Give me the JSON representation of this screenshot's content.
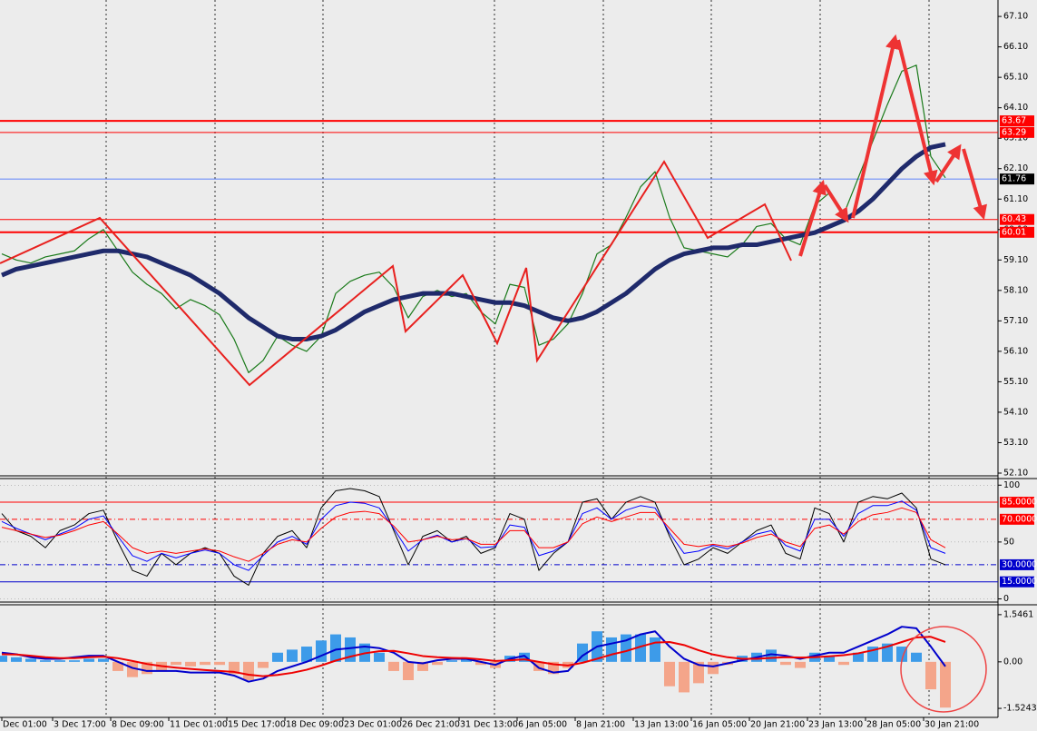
{
  "chart_data": [
    {
      "type": "line",
      "ylim": [
        52.04,
        67.64
      ],
      "yticks": [
        {
          "value": 52.1,
          "label": "52.10"
        },
        {
          "value": 53.1,
          "label": "53.10"
        },
        {
          "value": 54.1,
          "label": "54.10"
        },
        {
          "value": 55.1,
          "label": "55.10"
        },
        {
          "value": 56.1,
          "label": "56.10"
        },
        {
          "value": 57.1,
          "label": "57.10"
        },
        {
          "value": 58.1,
          "label": "58.10"
        },
        {
          "value": 59.1,
          "label": "59.10"
        },
        {
          "value": 60.1,
          "label": "60.10"
        },
        {
          "value": 61.1,
          "label": "61.10"
        },
        {
          "value": 62.1,
          "label": "62.10"
        },
        {
          "value": 63.1,
          "label": "63.10"
        },
        {
          "value": 64.1,
          "label": "64.10"
        },
        {
          "value": 65.1,
          "label": "65.10"
        },
        {
          "value": 66.1,
          "label": "66.10"
        },
        {
          "value": 67.1,
          "label": "67.10"
        }
      ],
      "levels": [
        {
          "value": 63.67,
          "color": "#ff0000",
          "width": 2
        },
        {
          "value": 63.29,
          "color": "#ff0000",
          "width": 1
        },
        {
          "value": 61.76,
          "color": "#3060ff",
          "width": 0.7,
          "box": "#000000"
        },
        {
          "value": 60.43,
          "color": "#ff0000",
          "width": 1
        },
        {
          "value": 60.01,
          "color": "#ff0000",
          "width": 2
        }
      ],
      "series": [
        {
          "color": "#1a7a1a",
          "width": 1.2,
          "values": [
            59.3,
            59.1,
            59.0,
            59.2,
            59.3,
            59.4,
            59.8,
            60.1,
            59.4,
            58.7,
            58.3,
            58.0,
            57.5,
            57.8,
            57.6,
            57.3,
            56.5,
            55.4,
            55.8,
            56.6,
            56.3,
            56.1,
            56.6,
            58.0,
            58.4,
            58.6,
            58.7,
            58.2,
            57.2,
            57.9,
            58.1,
            57.9,
            58.0,
            57.4,
            57.0,
            58.3,
            58.2,
            56.3,
            56.5,
            57.0,
            58.0,
            59.3,
            59.6,
            60.5,
            61.5,
            62.0,
            60.5,
            59.5,
            59.4,
            59.3,
            59.2,
            59.6,
            60.2,
            60.3,
            59.8,
            59.6,
            60.9,
            61.3,
            60.6,
            61.8,
            63.0,
            64.2,
            65.3,
            65.5,
            62.5,
            61.8
          ]
        },
        {
          "color": "#1f2a6b",
          "width": 5,
          "values": [
            58.6,
            58.8,
            58.9,
            59.0,
            59.1,
            59.2,
            59.3,
            59.4,
            59.4,
            59.3,
            59.2,
            59.0,
            58.8,
            58.6,
            58.3,
            58.0,
            57.6,
            57.2,
            56.9,
            56.6,
            56.5,
            56.5,
            56.6,
            56.8,
            57.1,
            57.4,
            57.6,
            57.8,
            57.9,
            58.0,
            58.0,
            58.0,
            57.9,
            57.8,
            57.7,
            57.7,
            57.6,
            57.4,
            57.2,
            57.1,
            57.2,
            57.4,
            57.7,
            58.0,
            58.4,
            58.8,
            59.1,
            59.3,
            59.4,
            59.5,
            59.5,
            59.6,
            59.6,
            59.7,
            59.8,
            59.9,
            60.0,
            60.2,
            60.4,
            60.7,
            61.1,
            61.6,
            62.1,
            62.5,
            62.8,
            62.9
          ]
        }
      ]
    },
    {
      "type": "line",
      "ylim": [
        -2,
        105
      ],
      "yticks": [
        0,
        50,
        100
      ],
      "levels": [
        {
          "value": 85,
          "label": "85.0000",
          "color": "#ff0000",
          "width": 1
        },
        {
          "value": 70,
          "label": "70.0000",
          "color": "#ff0000",
          "width": 1,
          "dash": "6 3 1 3"
        },
        {
          "value": 30,
          "label": "30.0000",
          "color": "#0000cc",
          "width": 1,
          "dash": "6 3 1 3"
        },
        {
          "value": 15,
          "label": "15.0000",
          "color": "#0000cc",
          "width": 1
        }
      ],
      "series": [
        {
          "color": "#000000",
          "width": 1,
          "values": [
            75,
            60,
            55,
            45,
            60,
            65,
            75,
            78,
            50,
            25,
            20,
            40,
            30,
            40,
            45,
            40,
            20,
            12,
            40,
            55,
            60,
            45,
            80,
            95,
            97,
            95,
            90,
            60,
            30,
            55,
            60,
            50,
            55,
            40,
            45,
            75,
            70,
            25,
            40,
            50,
            85,
            88,
            70,
            85,
            90,
            85,
            55,
            30,
            35,
            45,
            40,
            50,
            60,
            65,
            40,
            35,
            80,
            75,
            50,
            85,
            90,
            88,
            93,
            80,
            35,
            30
          ]
        },
        {
          "color": "#0000ff",
          "width": 1,
          "values": [
            68,
            62,
            57,
            52,
            57,
            62,
            70,
            73,
            55,
            38,
            33,
            40,
            36,
            40,
            43,
            40,
            30,
            25,
            38,
            50,
            55,
            48,
            70,
            82,
            85,
            84,
            80,
            62,
            42,
            52,
            56,
            50,
            53,
            45,
            46,
            65,
            63,
            38,
            42,
            50,
            75,
            80,
            70,
            78,
            82,
            80,
            58,
            40,
            42,
            47,
            44,
            50,
            57,
            60,
            47,
            42,
            70,
            70,
            55,
            75,
            82,
            82,
            86,
            78,
            45,
            40
          ]
        },
        {
          "color": "#ff0000",
          "width": 1,
          "values": [
            63,
            60,
            57,
            54,
            56,
            60,
            65,
            68,
            57,
            45,
            40,
            42,
            40,
            42,
            44,
            42,
            37,
            33,
            40,
            48,
            52,
            50,
            62,
            72,
            76,
            77,
            75,
            64,
            50,
            52,
            55,
            52,
            53,
            48,
            48,
            60,
            60,
            45,
            45,
            50,
            66,
            72,
            68,
            72,
            76,
            76,
            62,
            48,
            46,
            48,
            46,
            49,
            54,
            57,
            50,
            46,
            62,
            65,
            57,
            68,
            74,
            76,
            80,
            76,
            52,
            45
          ]
        }
      ]
    },
    {
      "type": "bar",
      "ylim": [
        -1.79,
        1.84
      ],
      "yticks": [
        -1.5243,
        {
          "value": 0,
          "label": "0.00"
        },
        1.5461
      ],
      "color_positive": "#3d9be9",
      "color_negative": "#f4a58a",
      "values": [
        0.2,
        0.15,
        0.1,
        0.05,
        0.05,
        0.05,
        0.1,
        0.1,
        -0.3,
        -0.5,
        -0.4,
        -0.3,
        -0.1,
        -0.15,
        -0.1,
        -0.1,
        -0.4,
        -0.6,
        -0.2,
        0.3,
        0.4,
        0.5,
        0.7,
        0.9,
        0.8,
        0.6,
        0.3,
        -0.3,
        -0.6,
        -0.3,
        -0.1,
        0.05,
        0.1,
        -0.1,
        -0.2,
        0.2,
        0.3,
        -0.3,
        -0.4,
        -0.2,
        0.6,
        1.0,
        0.8,
        0.9,
        0.9,
        0.8,
        -0.8,
        -1.0,
        -0.7,
        -0.4,
        -0.1,
        0.2,
        0.3,
        0.4,
        -0.1,
        -0.2,
        0.3,
        0.2,
        -0.1,
        0.3,
        0.5,
        0.6,
        0.5,
        0.3,
        -0.9,
        -1.5
      ],
      "series": [
        {
          "color": "#0000cc",
          "width": 2,
          "values": [
            0.3,
            0.25,
            0.15,
            0.1,
            0.1,
            0.15,
            0.2,
            0.2,
            0.0,
            -0.2,
            -0.3,
            -0.3,
            -0.3,
            -0.35,
            -0.35,
            -0.35,
            -0.45,
            -0.65,
            -0.55,
            -0.3,
            -0.15,
            0.0,
            0.2,
            0.4,
            0.45,
            0.5,
            0.45,
            0.3,
            0.0,
            -0.05,
            0.05,
            0.1,
            0.1,
            0.0,
            -0.1,
            0.1,
            0.2,
            -0.2,
            -0.35,
            -0.3,
            0.2,
            0.5,
            0.6,
            0.7,
            0.9,
            1.0,
            0.5,
            0.1,
            -0.1,
            -0.15,
            -0.05,
            0.05,
            0.15,
            0.25,
            0.2,
            0.1,
            0.2,
            0.3,
            0.3,
            0.5,
            0.7,
            0.9,
            1.15,
            1.1,
            0.5,
            -0.15
          ]
        },
        {
          "color": "#ee0000",
          "width": 2,
          "values": [
            0.25,
            0.24,
            0.2,
            0.15,
            0.12,
            0.12,
            0.15,
            0.17,
            0.12,
            0.03,
            -0.07,
            -0.14,
            -0.19,
            -0.23,
            -0.27,
            -0.3,
            -0.33,
            -0.42,
            -0.47,
            -0.43,
            -0.36,
            -0.26,
            -0.12,
            0.04,
            0.17,
            0.28,
            0.35,
            0.36,
            0.28,
            0.19,
            0.15,
            0.13,
            0.12,
            0.08,
            0.03,
            0.05,
            0.08,
            0.0,
            -0.08,
            -0.12,
            -0.03,
            0.1,
            0.24,
            0.35,
            0.5,
            0.63,
            0.65,
            0.55,
            0.38,
            0.24,
            0.15,
            0.1,
            0.1,
            0.13,
            0.15,
            0.14,
            0.15,
            0.18,
            0.22,
            0.28,
            0.38,
            0.5,
            0.65,
            0.8,
            0.82,
            0.65
          ]
        }
      ],
      "xticks": [
        {
          "value": 0,
          "label": "Dec 01:00"
        },
        {
          "value": 3.5,
          "label": "3 Dec 17:00"
        },
        {
          "value": 7.5,
          "label": "8 Dec 09:00"
        },
        {
          "value": 11.5,
          "label": "11 Dec 01:00"
        },
        {
          "value": 15.5,
          "label": "15 Dec 17:00"
        },
        {
          "value": 19.5,
          "label": "18 Dec 09:00"
        },
        {
          "value": 23.5,
          "label": "23 Dec 01:00"
        },
        {
          "value": 27.5,
          "label": "26 Dec 21:00"
        },
        {
          "value": 31.5,
          "label": "31 Dec 13:00"
        },
        {
          "value": 35.5,
          "label": "6 Jan 05:00"
        },
        {
          "value": 39.5,
          "label": "8 Jan 21:00"
        },
        {
          "value": 43.5,
          "label": "13 Jan 13:00"
        },
        {
          "value": 47.5,
          "label": "16 Jan 05:00"
        },
        {
          "value": 51.5,
          "label": "20 Jan 21:00"
        },
        {
          "value": 55.5,
          "label": "23 Jan 13:00"
        },
        {
          "value": 59.5,
          "label": "28 Jan 05:00"
        },
        {
          "value": 63.5,
          "label": "30 Jan 21:00"
        }
      ]
    }
  ]
}
